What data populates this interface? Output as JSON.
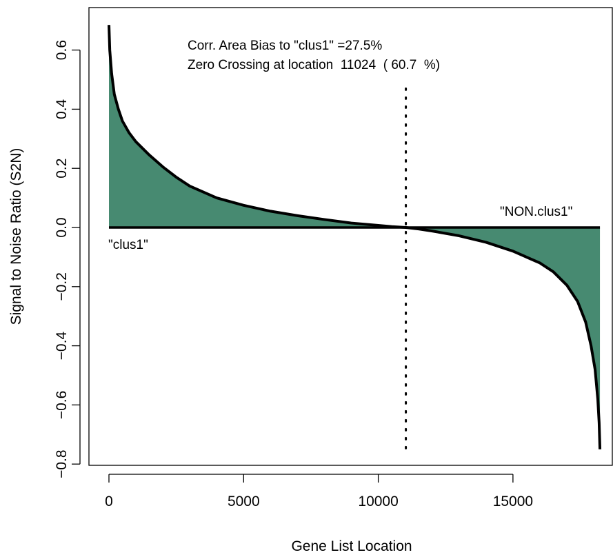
{
  "chart_data": {
    "type": "area",
    "xlabel": "Gene List Location",
    "ylabel": "Signal to Noise Ratio (S2N)",
    "xlim": [
      -700,
      18700
    ],
    "ylim": [
      -0.8,
      0.7
    ],
    "x_ticks": [
      0,
      5000,
      10000,
      15000
    ],
    "x_tick_labels": [
      "0",
      "5000",
      "10000",
      "15000"
    ],
    "y_ticks": [
      -0.8,
      -0.6,
      -0.4,
      -0.2,
      0.0,
      0.2,
      0.4,
      0.6
    ],
    "y_tick_labels": [
      "−0.8",
      "−0.6",
      "−0.4",
      "−0.2",
      "0.0",
      "0.2",
      "0.4",
      "0.6"
    ],
    "grid": false,
    "fill_color": "#478A71",
    "line_color": "#000000",
    "series": [
      {
        "x": [
          0,
          30,
          100,
          200,
          350,
          500,
          750,
          1000,
          1500,
          2000,
          2500,
          3000,
          4000,
          5000,
          6000,
          7000,
          8000,
          9000,
          10000,
          10500,
          11024,
          11500,
          12000,
          13000,
          14000,
          15000,
          16000,
          16500,
          17000,
          17400,
          17700,
          17900,
          18050,
          18150,
          18200,
          18230
        ],
        "y": [
          0.685,
          0.6,
          0.52,
          0.45,
          0.4,
          0.36,
          0.32,
          0.29,
          0.245,
          0.205,
          0.17,
          0.14,
          0.1,
          0.075,
          0.055,
          0.04,
          0.027,
          0.015,
          0.007,
          0.003,
          0.0,
          -0.005,
          -0.012,
          -0.028,
          -0.05,
          -0.08,
          -0.12,
          -0.15,
          -0.195,
          -0.25,
          -0.32,
          -0.4,
          -0.48,
          -0.58,
          -0.66,
          -0.75
        ]
      }
    ],
    "vline": {
      "x": 11024,
      "y_range": [
        -0.76,
        0.47
      ],
      "style": "dotted"
    },
    "annotations": {
      "line1": "Corr. Area Bias to \"clus1\" =27.5%",
      "line2": "Zero Crossing at location  11024  ( 60.7  %)",
      "left_label": "\"clus1\"",
      "right_label": "\"NON.clus1\""
    }
  }
}
